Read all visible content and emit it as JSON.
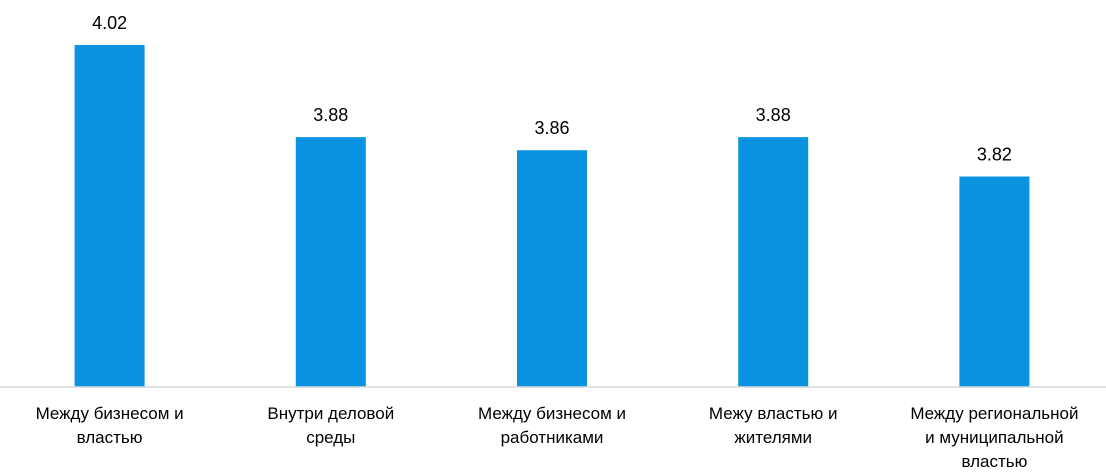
{
  "chart_data": {
    "type": "bar",
    "title": "",
    "xlabel": "",
    "ylabel": "",
    "categories": [
      [
        "Между бизнесом и",
        "властью"
      ],
      [
        "Внутри деловой",
        "среды"
      ],
      [
        "Между бизнесом и",
        "работниками"
      ],
      [
        "Межу властью и",
        "жителями"
      ],
      [
        "Между региональной",
        "и муниципальной",
        "властью"
      ]
    ],
    "values": [
      4.02,
      3.88,
      3.86,
      3.88,
      3.82
    ],
    "value_labels": [
      "4.02",
      "3.88",
      "3.86",
      "3.88",
      "3.82"
    ],
    "ylim": [
      3.5,
      4.05
    ],
    "grid": false,
    "legend": "none",
    "bar_color": "#0a93e0",
    "axis_color": "#d9d9d9"
  }
}
